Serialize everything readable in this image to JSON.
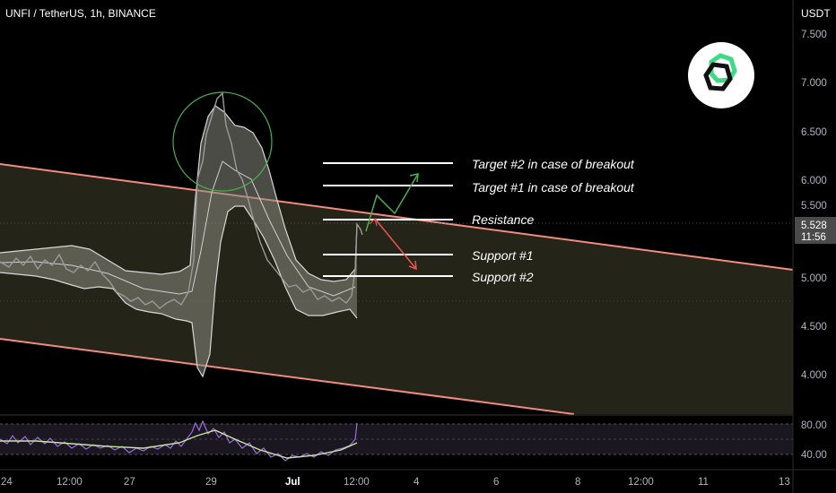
{
  "header": {
    "symbol_line": "UNFI / TetherUS, 1h, BINANCE",
    "currency": "USDT"
  },
  "colors": {
    "background": "#000000",
    "channel_line": "#f28b82",
    "channel_fill": "#2b2a1c",
    "bands_fill": "#8a8a80",
    "bands_line": "#d8d8d8",
    "price": "#9a9a9a",
    "level_line": "#ffffff",
    "bull_arrow": "#4caf50",
    "bear_arrow": "#ef5350",
    "rsi_line": "#9c6ade",
    "rsi_ma": "#c8e6a0",
    "logo_ring": "#3ddc84"
  },
  "price_axis": {
    "labels": [
      "7.500",
      "7.000",
      "6.500",
      "6.000",
      "5.500",
      "5.000",
      "4.500",
      "4.000"
    ],
    "current_price": "5.528",
    "countdown": "11:56"
  },
  "rsi_axis": {
    "labels": [
      "80.00",
      "40.00"
    ]
  },
  "time_axis": {
    "labels": [
      "24",
      "12:00",
      "27",
      "29",
      "Jul",
      "12:00",
      "4",
      "6",
      "8",
      "12:00",
      "11",
      "13"
    ]
  },
  "annotations": {
    "target2": "Target #2 in case of breakout",
    "target1": "Target #1 in case of breakout",
    "resistance": "Resistance",
    "support1": "Support #1",
    "support2": "Support #2"
  },
  "chart_data": {
    "type": "line",
    "title": "UNFI / TetherUS, 1h, BINANCE",
    "ylabel": "USDT",
    "ylim": [
      3.6,
      7.75
    ],
    "price_path": [
      {
        "x": "24",
        "y": 5.15
      },
      {
        "x": "12:00",
        "y": 5.05
      },
      {
        "x": "27",
        "y": 4.75
      },
      {
        "x": "29 (spike)",
        "y": 6.9
      },
      {
        "x": "Jul",
        "y": 4.9
      },
      {
        "x": "12:00",
        "y": 4.8
      },
      {
        "x": "12:00 (jump)",
        "y": 5.528
      }
    ],
    "levels": [
      {
        "name": "Target #2 in case of breakout",
        "y": 6.15
      },
      {
        "name": "Target #1 in case of breakout",
        "y": 5.92
      },
      {
        "name": "Resistance",
        "y": 5.58
      },
      {
        "name": "Support #1",
        "y": 5.22
      },
      {
        "name": "Support #2",
        "y": 5.0
      }
    ],
    "rsi": {
      "labels": [
        80,
        40
      ]
    },
    "current_price": 5.528
  }
}
